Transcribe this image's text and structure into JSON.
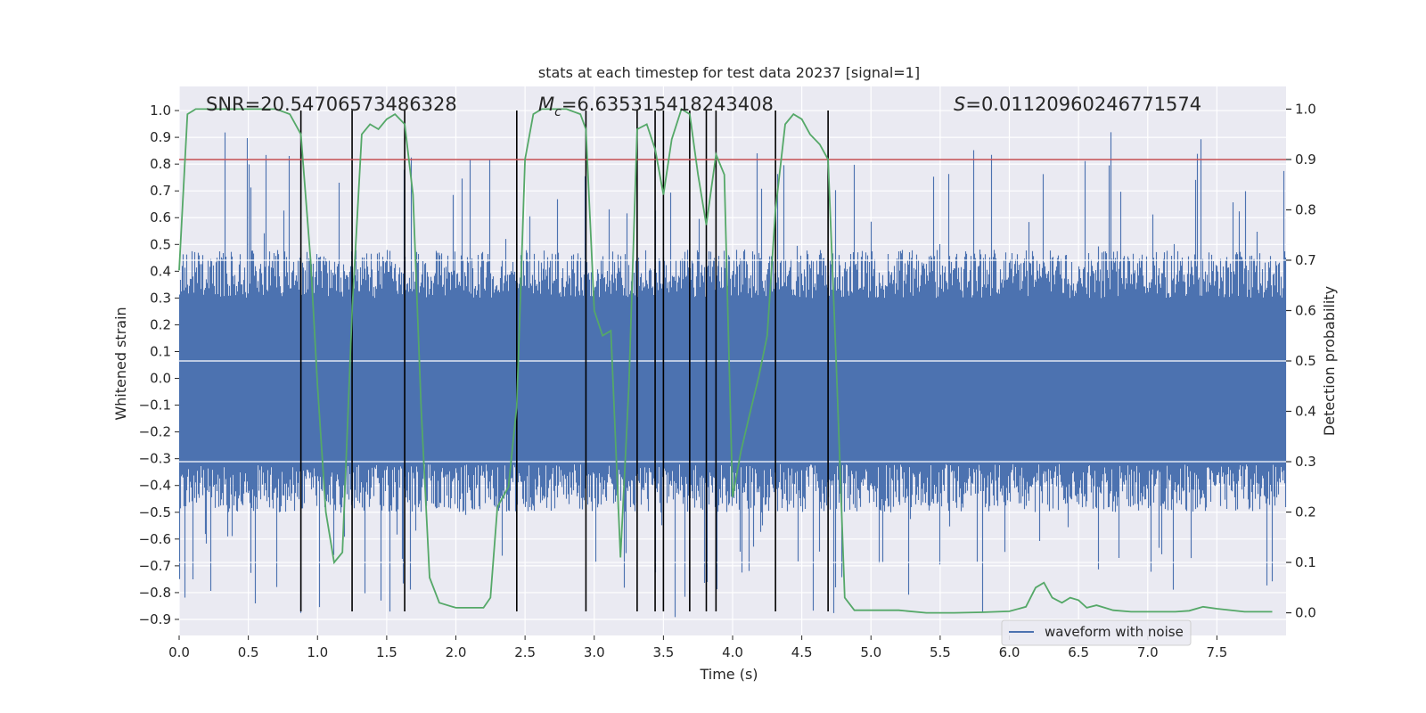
{
  "chart_data": {
    "type": "line",
    "title": "stats at each timestep for test data 20237 [signal=1]",
    "xlabel": "Time (s)",
    "ylabel": "Whitened strain",
    "ylabel_right": "Detection probability",
    "xlim": [
      0.0,
      8.0
    ],
    "ylim": [
      -0.96,
      1.09
    ],
    "ylim_right": [
      -0.045,
      1.045
    ],
    "x_ticks": [
      "0.0",
      "0.5",
      "1.0",
      "1.5",
      "2.0",
      "2.5",
      "3.0",
      "3.5",
      "4.0",
      "4.5",
      "5.0",
      "5.5",
      "6.0",
      "6.5",
      "7.0",
      "7.5"
    ],
    "x_tick_values": [
      0,
      0.5,
      1,
      1.5,
      2,
      2.5,
      3,
      3.5,
      4,
      4.5,
      5,
      5.5,
      6,
      6.5,
      7,
      7.5
    ],
    "y_ticks": [
      "1.0",
      "0.9",
      "0.8",
      "0.7",
      "0.6",
      "0.5",
      "0.4",
      "0.3",
      "0.2",
      "0.1",
      "0.0",
      "−0.1",
      "−0.2",
      "−0.3",
      "−0.4",
      "−0.5",
      "−0.6",
      "−0.7",
      "−0.8",
      "−0.9"
    ],
    "y_tick_values": [
      1.0,
      0.9,
      0.8,
      0.7,
      0.6,
      0.5,
      0.4,
      0.3,
      0.2,
      0.1,
      0.0,
      -0.1,
      -0.2,
      -0.3,
      -0.4,
      -0.5,
      -0.6,
      -0.7,
      -0.8,
      -0.9
    ],
    "y_ticks_right": [
      "1.0",
      "0.9",
      "0.8",
      "0.7",
      "0.6",
      "0.5",
      "0.4",
      "0.3",
      "0.2",
      "0.1",
      "0.0"
    ],
    "y_tick_values_right": [
      1.0,
      0.9,
      0.8,
      0.7,
      0.6,
      0.5,
      0.4,
      0.3,
      0.2,
      0.1,
      0.0
    ],
    "stats": {
      "snr": "SNR=20.54706573486328",
      "mc_symbol": "M",
      "mc_sub": "c",
      "mc_value": "=6.635315418243408",
      "s_symbol": "S",
      "s_value": "=0.01120960246771574"
    },
    "legend": {
      "label": "waveform with noise",
      "position": "lower-right"
    },
    "threshold": 0.9,
    "vertical_lines": [
      0.88,
      1.25,
      1.63,
      2.44,
      2.94,
      3.31,
      3.44,
      3.5,
      3.69,
      3.81,
      3.88,
      4.31,
      4.69
    ],
    "vline_range": [
      -0.87,
      1.0
    ],
    "series": [
      {
        "name": "waveform with noise",
        "kind": "noise-bars",
        "color": "#4c72b0",
        "typical_min": -0.32,
        "typical_max": 0.3,
        "peak_max": 0.92,
        "peak_min": -0.88
      },
      {
        "name": "detection probability",
        "axis": "right",
        "color": "#55a868",
        "x": [
          0.0,
          0.06,
          0.12,
          0.2,
          0.3,
          0.5,
          0.7,
          0.8,
          0.88,
          0.95,
          1.0,
          1.06,
          1.12,
          1.18,
          1.25,
          1.32,
          1.38,
          1.44,
          1.5,
          1.56,
          1.63,
          1.69,
          1.75,
          1.81,
          1.88,
          2.0,
          2.1,
          2.2,
          2.25,
          2.3,
          2.38,
          2.44,
          2.5,
          2.56,
          2.62,
          2.7,
          2.8,
          2.9,
          2.94,
          3.0,
          3.06,
          3.12,
          3.19,
          3.25,
          3.31,
          3.38,
          3.44,
          3.5,
          3.56,
          3.63,
          3.69,
          3.75,
          3.81,
          3.88,
          3.94,
          4.0,
          4.06,
          4.12,
          4.19,
          4.25,
          4.31,
          4.38,
          4.44,
          4.5,
          4.56,
          4.63,
          4.69,
          4.75,
          4.81,
          4.88,
          5.0,
          5.2,
          5.4,
          5.6,
          5.8,
          6.0,
          6.12,
          6.19,
          6.25,
          6.31,
          6.38,
          6.44,
          6.5,
          6.56,
          6.63,
          6.69,
          6.75,
          6.88,
          7.0,
          7.2,
          7.3,
          7.4,
          7.5,
          7.7,
          7.9
        ],
        "y": [
          0.68,
          0.99,
          1.0,
          1.0,
          1.0,
          1.0,
          1.0,
          0.99,
          0.95,
          0.7,
          0.45,
          0.2,
          0.1,
          0.12,
          0.6,
          0.95,
          0.97,
          0.96,
          0.98,
          0.99,
          0.97,
          0.83,
          0.4,
          0.07,
          0.02,
          0.01,
          0.01,
          0.01,
          0.03,
          0.21,
          0.25,
          0.41,
          0.9,
          0.99,
          1.0,
          1.0,
          1.0,
          0.99,
          0.96,
          0.6,
          0.55,
          0.56,
          0.11,
          0.45,
          0.96,
          0.97,
          0.92,
          0.83,
          0.94,
          1.0,
          0.99,
          0.87,
          0.77,
          0.91,
          0.87,
          0.23,
          0.32,
          0.39,
          0.47,
          0.55,
          0.8,
          0.97,
          0.99,
          0.98,
          0.95,
          0.93,
          0.9,
          0.49,
          0.03,
          0.005,
          0.005,
          0.005,
          0.0,
          0.0,
          0.001,
          0.003,
          0.012,
          0.05,
          0.06,
          0.03,
          0.02,
          0.03,
          0.025,
          0.01,
          0.015,
          0.01,
          0.005,
          0.002,
          0.002,
          0.002,
          0.004,
          0.012,
          0.008,
          0.002,
          0.002
        ]
      }
    ]
  }
}
